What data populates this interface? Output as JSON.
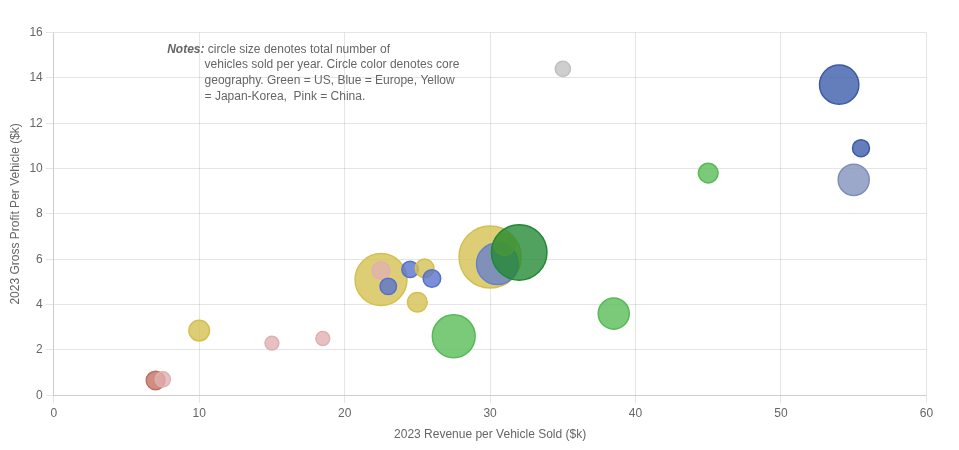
{
  "chart_data": {
    "type": "bubble",
    "xlabel": "2023 Revenue per Vehicle Sold ($k)",
    "ylabel": "2023 Gross Profit Per Vehicle ($k)",
    "annotations": [
      "Notes:",
      " circle size denotes total number of\nvehicles sold per year. Circle color denotes core\ngeography. Green = US, Blue = Europe, Yellow\n= Japan-Korea,  Pink = China."
    ],
    "xlim": [
      0,
      60
    ],
    "ylim": [
      0,
      16
    ],
    "xticks": [
      0,
      10,
      20,
      30,
      40,
      50,
      60
    ],
    "yticks": [
      0,
      2,
      4,
      6,
      8,
      10,
      12,
      14,
      16
    ],
    "grid": true,
    "x": [
      7.0,
      7.5,
      10.0,
      15.0,
      18.5,
      22.5,
      22.5,
      23.0,
      24.5,
      25.0,
      25.5,
      26.0,
      27.5,
      30.0,
      30.5,
      31.0,
      32.0,
      38.5,
      45.0,
      35.0,
      54.0,
      55.5,
      55.0
    ],
    "values": [
      0.65,
      0.7,
      2.85,
      2.3,
      2.5,
      5.1,
      5.5,
      4.8,
      5.55,
      4.1,
      5.6,
      5.15,
      2.6,
      6.1,
      5.8,
      6.65,
      6.3,
      3.6,
      9.8,
      14.4,
      13.7,
      10.9,
      9.5
    ],
    "sizes": [
      180,
      120,
      220,
      100,
      100,
      1400,
      160,
      140,
      140,
      200,
      180,
      160,
      950,
      2000,
      900,
      240,
      1600,
      500,
      200,
      120,
      800,
      150,
      500
    ],
    "colors": [
      "#c07060",
      "#e0b0b0",
      "#d4c050",
      "#e0b0b0",
      "#e0b0b0",
      "#d4c050",
      "#e0b0b0",
      "#5570cc",
      "#5570cc",
      "#d4c050",
      "#d4c050",
      "#5570cc",
      "#55bb55",
      "#d4c050",
      "#6680cc",
      "#d4c050",
      "#228833",
      "#55bb55",
      "#55bb55",
      "#c0c0c0",
      "#3a5aaa",
      "#3a5aaa",
      "#8090bb"
    ]
  }
}
